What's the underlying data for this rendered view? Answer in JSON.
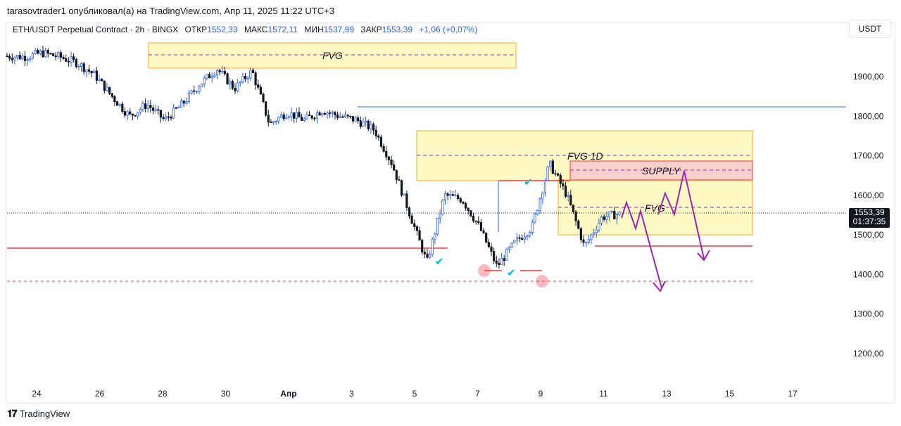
{
  "header": {
    "published_by": "tarasovtrader1 опубликовал(а) на TradingView.com, Апр 11, 2025 11:22 UTC+3"
  },
  "symbol": {
    "title": "ETH/USDT Perpetual Contract · 2h · BINGX",
    "open_label": "ОТКР",
    "open": "1552,33",
    "high_label": "МАКС",
    "high": "1572,11",
    "low_label": "МИН",
    "low": "1537,99",
    "close_label": "ЗАКР",
    "close": "1553,39",
    "change": "+1,06 (+0,07%)"
  },
  "currency": "USDT",
  "last_price": {
    "price": "1553,39",
    "countdown": "01:37:35"
  },
  "annotations": {
    "fvg_top": "FVG",
    "fvg_1d": "FVG 1D",
    "supply": "SUPPLY",
    "fvg_right": "FVG"
  },
  "footer": {
    "brand": "TradingView"
  },
  "colors": {
    "up": "#2962ff",
    "down": "#131722",
    "zone_yellow": "#fff59d",
    "zone_border": "#f9a825",
    "supply_fill": "#f8c9cd",
    "supply_border": "#f23645",
    "blue_line": "#2962ff",
    "red_line": "#f23645",
    "purple": "#9c27b0",
    "check": "#00bcd4"
  },
  "chart_data": {
    "type": "candlestick",
    "x_ticks": [
      "24",
      "26",
      "28",
      "30",
      "Апр",
      "3",
      "5",
      "7",
      "9",
      "11",
      "13",
      "15",
      "17"
    ],
    "y_ticks": [
      "1900,00",
      "1800,00",
      "1700,00",
      "1600,00",
      "1500,00",
      "1400,00",
      "1300,00",
      "1200,00"
    ],
    "ylim": [
      1100,
      1985
    ],
    "reference_levels": {
      "blue": 1822,
      "red_solid": 1467,
      "red_dashed": 1381,
      "current": 1553.39
    },
    "zones": [
      {
        "name": "FVG",
        "low": 1922,
        "high": 1985
      },
      {
        "name": "FVG 1D",
        "low": 1637,
        "high": 1762
      },
      {
        "name": "SUPPLY",
        "low": 1640,
        "high": 1688
      },
      {
        "name": "FVG",
        "low": 1497,
        "high": 1570
      }
    ],
    "path_points": [
      [
        1952,
        0
      ],
      [
        1950,
        1
      ],
      [
        1960,
        2
      ],
      [
        1950,
        3
      ],
      [
        1935,
        4
      ],
      [
        1905,
        5
      ],
      [
        1850,
        6
      ],
      [
        1800,
        7
      ],
      [
        1830,
        8
      ],
      [
        1790,
        9
      ],
      [
        1830,
        10
      ],
      [
        1880,
        11
      ],
      [
        1920,
        12
      ],
      [
        1870,
        13
      ],
      [
        1915,
        14
      ],
      [
        1780,
        15
      ],
      [
        1810,
        16
      ],
      [
        1790,
        17
      ],
      [
        1815,
        18
      ],
      [
        1800,
        19
      ],
      [
        1790,
        20
      ],
      [
        1765,
        21
      ],
      [
        1680,
        22
      ],
      [
        1555,
        23
      ],
      [
        1430,
        24
      ],
      [
        1600,
        25
      ],
      [
        1590,
        26
      ],
      [
        1520,
        27
      ],
      [
        1420,
        28
      ],
      [
        1480,
        29
      ],
      [
        1520,
        30
      ],
      [
        1680,
        31
      ],
      [
        1600,
        32
      ],
      [
        1470,
        33
      ],
      [
        1545,
        34
      ],
      [
        1553,
        35
      ]
    ]
  }
}
